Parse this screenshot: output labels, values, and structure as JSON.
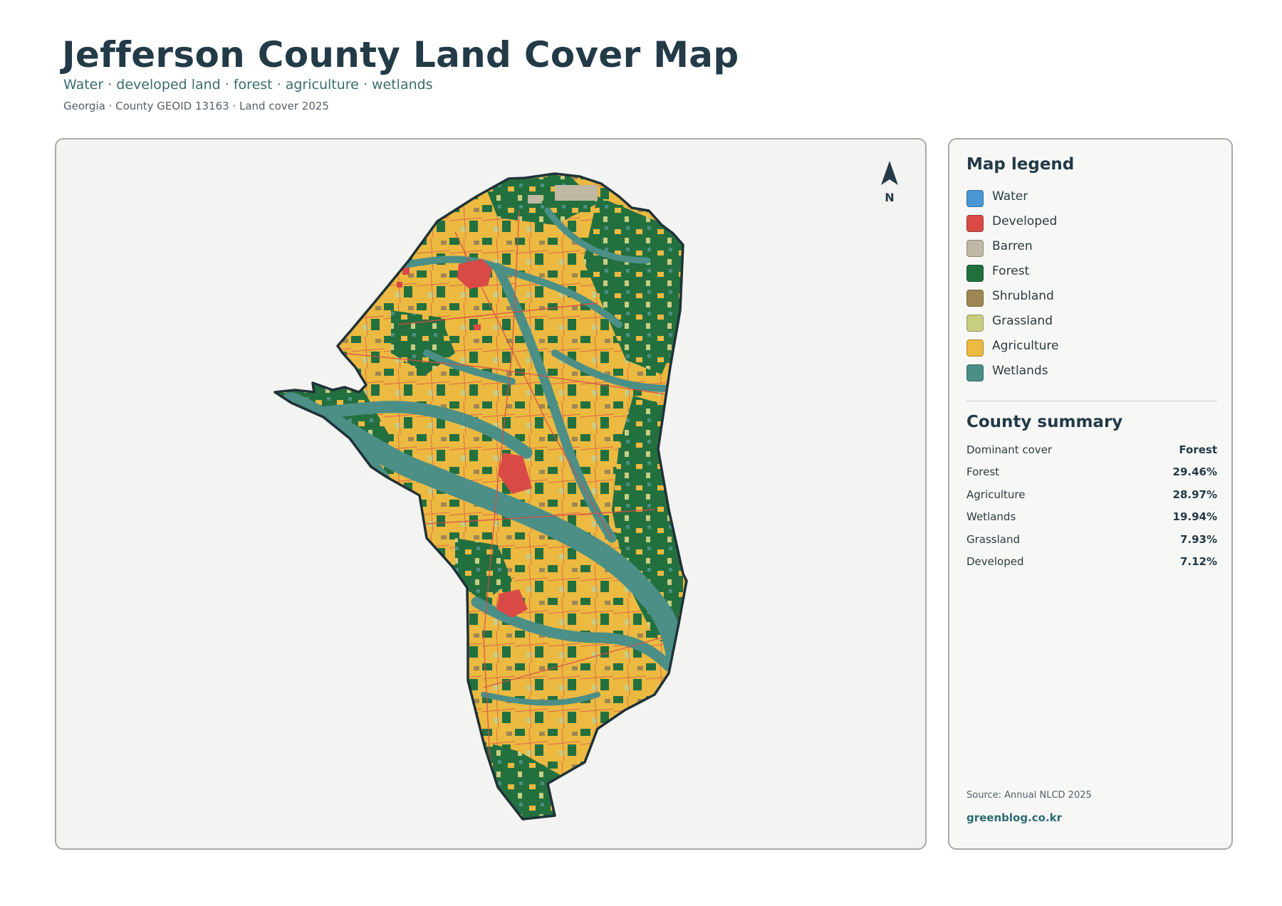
{
  "header": {
    "title": "Jefferson County Land Cover Map",
    "subtitle": "Water · developed land · forest · agriculture · wetlands",
    "meta": "Georgia · County GEOID 13163 · Land cover 2025"
  },
  "map": {
    "north_label": "N",
    "north_icon": "north-arrow-icon",
    "outline_color": "#1f3138",
    "background_color": "#f3f3f1"
  },
  "legend": {
    "heading": "Map legend",
    "items": [
      {
        "label": "Water",
        "color": "#4a97d4"
      },
      {
        "label": "Developed",
        "color": "#d94a46"
      },
      {
        "label": "Barren",
        "color": "#bfb8a4"
      },
      {
        "label": "Forest",
        "color": "#23703f"
      },
      {
        "label": "Shrubland",
        "color": "#9e8753"
      },
      {
        "label": "Grassland",
        "color": "#c9cd80"
      },
      {
        "label": "Agriculture",
        "color": "#ecb941"
      },
      {
        "label": "Wetlands",
        "color": "#4b8f87"
      }
    ]
  },
  "summary": {
    "heading": "County summary",
    "rows": [
      {
        "label": "Dominant cover",
        "value": "Forest"
      },
      {
        "label": "Forest",
        "value": "29.46%"
      },
      {
        "label": "Agriculture",
        "value": "28.97%"
      },
      {
        "label": "Wetlands",
        "value": "19.94%"
      },
      {
        "label": "Grassland",
        "value": "7.93%"
      },
      {
        "label": "Developed",
        "value": "7.12%"
      }
    ]
  },
  "footer": {
    "source": "Source: Annual NLCD 2025",
    "site": "greenblog.co.kr"
  }
}
